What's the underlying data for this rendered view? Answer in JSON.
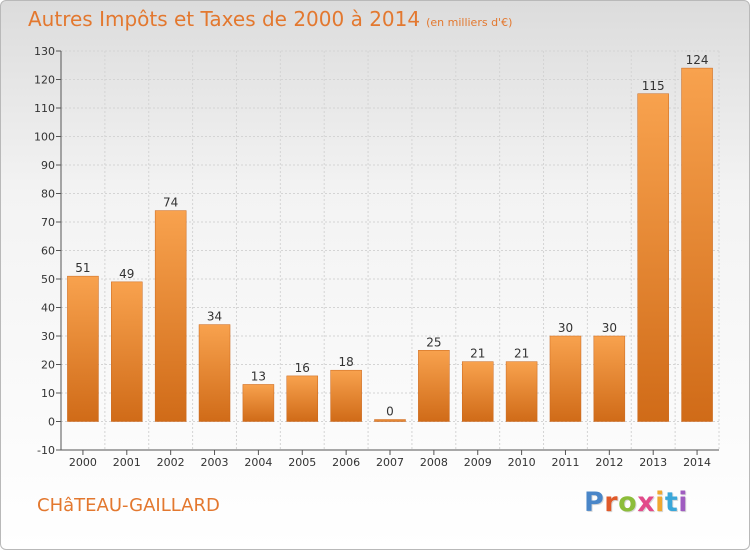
{
  "title": "Autres Impôts et Taxes de 2000 à 2014",
  "unit_note": "(en milliers d'€)",
  "commune": "CHâTEAU-GAILLARD",
  "logo": {
    "text": "Proxiti",
    "letter_colors": [
      "#4a86c8",
      "#e05a2a",
      "#8cbd3a",
      "#e24b8a",
      "#f0a830",
      "#3aa7d9",
      "#9f5cc0"
    ]
  },
  "colors": {
    "title": "#e3782f",
    "bar_top": "#f8a24e",
    "bar_bottom": "#d06b18"
  },
  "chart_data": {
    "type": "bar",
    "categories": [
      "2000",
      "2001",
      "2002",
      "2003",
      "2004",
      "2005",
      "2006",
      "2007",
      "2008",
      "2009",
      "2010",
      "2011",
      "2012",
      "2013",
      "2014"
    ],
    "values": [
      51,
      49,
      74,
      34,
      13,
      16,
      18,
      0,
      25,
      21,
      21,
      30,
      30,
      115,
      124
    ],
    "ylim": [
      -10,
      130
    ],
    "yticks": [
      -10,
      0,
      10,
      20,
      30,
      40,
      50,
      60,
      70,
      80,
      90,
      100,
      110,
      120,
      130
    ],
    "grid": true
  }
}
